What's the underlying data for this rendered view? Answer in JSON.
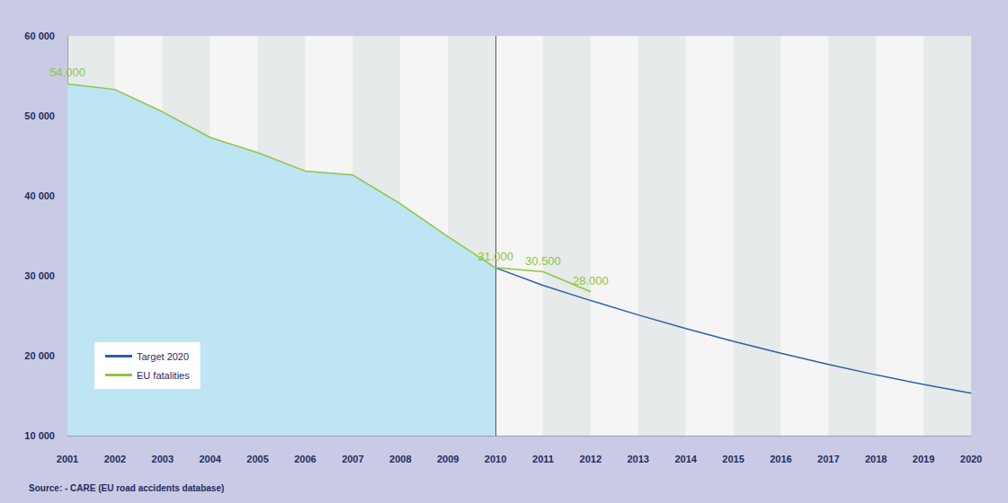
{
  "chart_data": {
    "type": "line",
    "source": "Source: - CARE (EU road accidents database)",
    "categories": [
      2001,
      2002,
      2003,
      2004,
      2005,
      2006,
      2007,
      2008,
      2009,
      2010,
      2011,
      2012,
      2013,
      2014,
      2015,
      2016,
      2017,
      2018,
      2019,
      2020
    ],
    "series": [
      {
        "name": "Target 2020",
        "color": "#2e5fa8",
        "values": [
          null,
          null,
          null,
          null,
          null,
          null,
          null,
          null,
          null,
          31000,
          28800,
          26900,
          25100,
          23400,
          21800,
          20300,
          18900,
          17600,
          16400,
          15300
        ]
      },
      {
        "name": "EU fatalities",
        "color": "#8dc63f",
        "data_labels": true,
        "values": [
          54000,
          53300,
          50500,
          47300,
          45400,
          43100,
          42600,
          39000,
          34900,
          31000,
          30500,
          28000,
          null,
          null,
          null,
          null,
          null,
          null,
          null,
          null
        ],
        "value_labels": [
          "54.000",
          null,
          null,
          null,
          null,
          null,
          null,
          null,
          null,
          "31.000",
          "30.500",
          "28.000",
          null,
          null,
          null,
          null,
          null,
          null,
          null,
          null
        ]
      }
    ],
    "ylim": [
      10000,
      60000
    ],
    "yticks": [
      {
        "value": 10000,
        "label": "10 000"
      },
      {
        "value": 20000,
        "label": "20 000"
      },
      {
        "value": 30000,
        "label": "30 000"
      },
      {
        "value": 40000,
        "label": "40 000"
      },
      {
        "value": 50000,
        "label": "50 000"
      },
      {
        "value": 60000,
        "label": "60 000"
      }
    ],
    "grid": false,
    "legend": "lower left"
  }
}
